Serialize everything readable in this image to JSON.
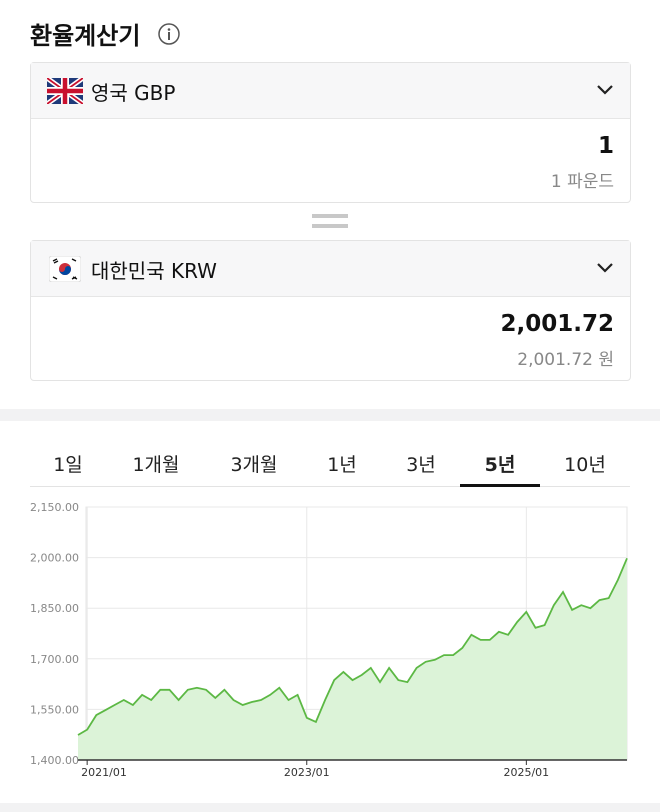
{
  "header": {
    "title": "환율계산기"
  },
  "converter": {
    "from": {
      "currency": "영국 GBP",
      "amount": "1",
      "amount_text": "1 파운드"
    },
    "to": {
      "currency": "대한민국 KRW",
      "amount": "2,001.72",
      "amount_text": "2,001.72 원"
    }
  },
  "tabs": {
    "items": [
      "1일",
      "1개월",
      "3개월",
      "1년",
      "3년",
      "5년",
      "10년"
    ],
    "selected": 5
  },
  "chart_data": {
    "type": "area",
    "x": [
      "2020/12",
      "2021/01",
      "2021/02",
      "2021/03",
      "2021/04",
      "2021/05",
      "2021/06",
      "2021/07",
      "2021/08",
      "2021/09",
      "2021/10",
      "2021/11",
      "2021/12",
      "2022/01",
      "2022/02",
      "2022/03",
      "2022/04",
      "2022/05",
      "2022/06",
      "2022/07",
      "2022/08",
      "2022/09",
      "2022/10",
      "2022/11",
      "2022/12",
      "2023/01",
      "2023/02",
      "2023/03",
      "2023/04",
      "2023/05",
      "2023/06",
      "2023/07",
      "2023/08",
      "2023/09",
      "2023/10",
      "2023/11",
      "2023/12",
      "2024/01",
      "2024/02",
      "2024/03",
      "2024/04",
      "2024/05",
      "2024/06",
      "2024/07",
      "2024/08",
      "2024/09",
      "2024/10",
      "2024/11",
      "2024/12",
      "2025/01",
      "2025/02",
      "2025/03",
      "2025/04",
      "2025/05",
      "2025/06",
      "2025/07",
      "2025/08",
      "2025/09",
      "2025/10",
      "2025/11",
      "2025/12"
    ],
    "series": [
      {
        "color": "#5cb844",
        "values": [
          1474,
          1490,
          1533,
          1548,
          1563,
          1578,
          1563,
          1593,
          1578,
          1608,
          1608,
          1578,
          1608,
          1614,
          1608,
          1584,
          1608,
          1578,
          1563,
          1572,
          1578,
          1593,
          1614,
          1578,
          1593,
          1525,
          1513,
          1578,
          1637,
          1661,
          1637,
          1652,
          1673,
          1631,
          1673,
          1637,
          1631,
          1673,
          1691,
          1697,
          1711,
          1711,
          1732,
          1771,
          1756,
          1756,
          1780,
          1771,
          1809,
          1839,
          1792,
          1800,
          1859,
          1898,
          1845,
          1859,
          1850,
          1874,
          1880,
          1934,
          1998
        ]
      }
    ],
    "fill_color": "#dcf3d8",
    "xlim": [
      "2020/12",
      "2025/12"
    ],
    "xticks": [
      "2021/01",
      "2023/01",
      "2025/01"
    ],
    "ylim": [
      1400,
      2150
    ],
    "yticks": [
      {
        "value": 1400,
        "label": "1,400.00"
      },
      {
        "value": 1550,
        "label": "1,550.00"
      },
      {
        "value": 1700,
        "label": "1,700.00"
      },
      {
        "value": 1850,
        "label": "1,850.00"
      },
      {
        "value": 2000,
        "label": "2,000.00"
      },
      {
        "value": 2150,
        "label": "2,150.00"
      }
    ],
    "grid": true
  }
}
